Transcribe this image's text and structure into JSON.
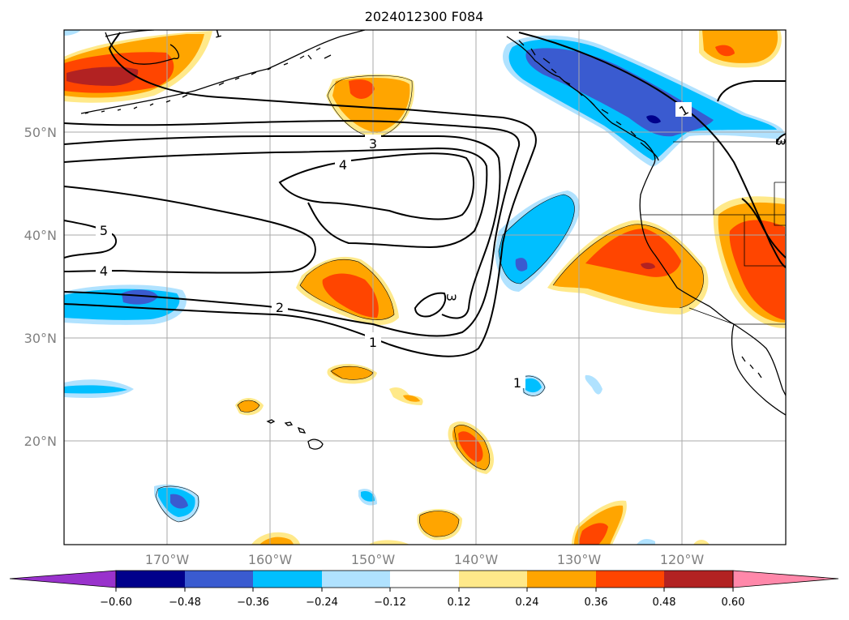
{
  "map": {
    "title": "2024012300 F084",
    "lat_labels": [
      "50°N",
      "40°N",
      "30°N",
      "20°N"
    ],
    "lon_labels": [
      "170°W",
      "160°W",
      "150°W",
      "140°W",
      "130°W",
      "120°W"
    ],
    "colors": {
      "neg_060": "#9932cc",
      "neg_048": "#00008b",
      "neg_036": "#3a5bd0",
      "neg_024": "#00bfff",
      "neg_012": "#b0e2ff",
      "neutral": "#ffffff",
      "pos_012": "#ffe98a",
      "pos_024": "#ffa500",
      "pos_036": "#ff4500",
      "pos_048": "#b22222",
      "pos_060": "#ff88aa"
    }
  },
  "contour_labels": [
    "1",
    "2",
    "3",
    "3",
    "4",
    "4",
    "5",
    "1",
    "1",
    "1",
    "3"
  ],
  "colorbar": {
    "tick_labels": [
      "−0.60",
      "−0.48",
      "−0.36",
      "−0.24",
      "−0.12",
      "0.12",
      "0.24",
      "0.36",
      "0.48",
      "0.60"
    ]
  }
}
